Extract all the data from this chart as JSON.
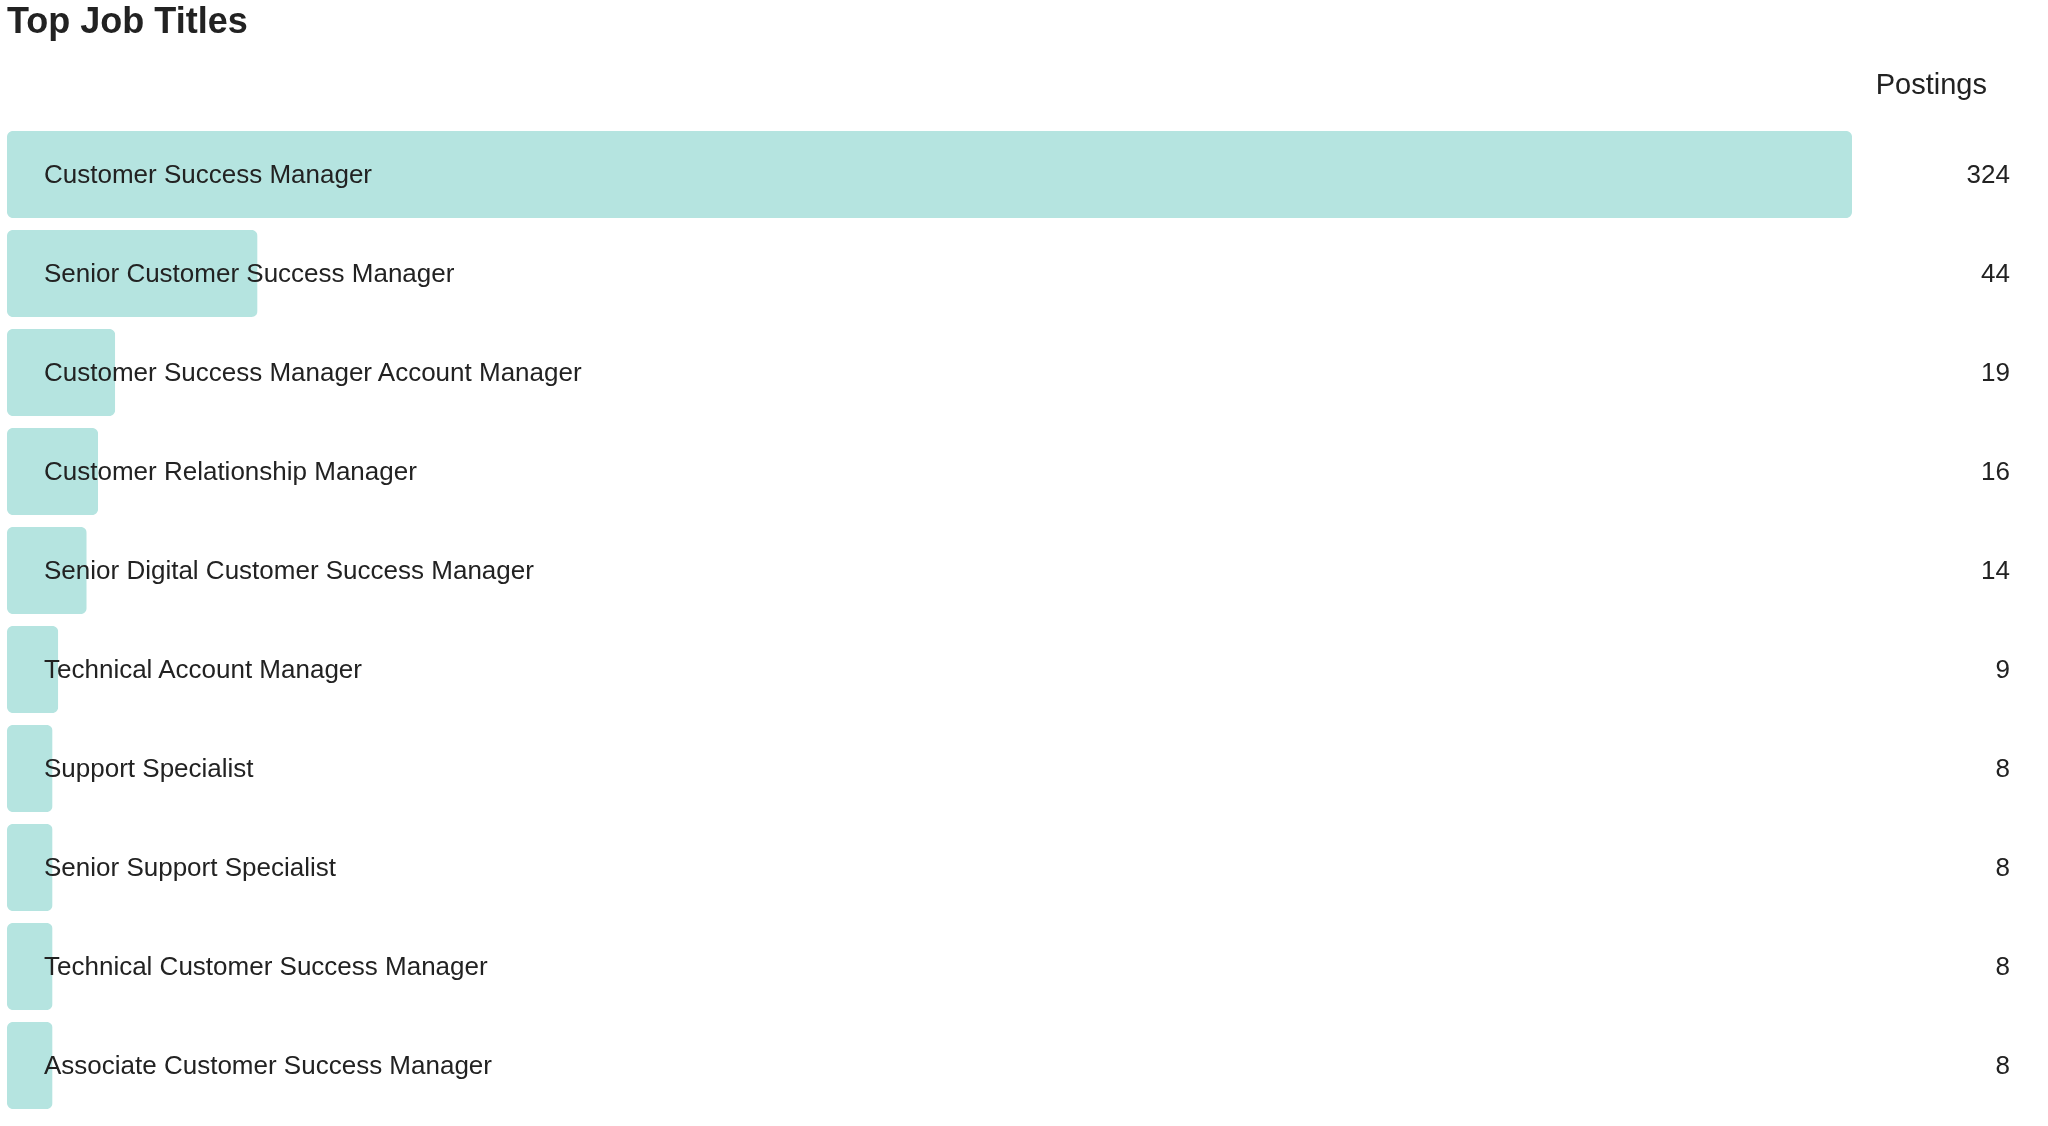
{
  "chart_data": {
    "type": "bar",
    "orientation": "horizontal",
    "title": "Top Job Titles",
    "xlabel": "Postings",
    "categories": [
      "Customer Success Manager",
      "Senior Customer Success Manager",
      "Customer Success Manager Account Manager",
      "Customer Relationship Manager",
      "Senior Digital Customer Success Manager",
      "Technical Account Manager",
      "Support Specialist",
      "Senior Support Specialist",
      "Technical Customer Success Manager",
      "Associate Customer Success Manager"
    ],
    "values": [
      324,
      44,
      19,
      16,
      14,
      9,
      8,
      8,
      8,
      8
    ],
    "color": "#b5e4e0",
    "data_labels": true
  }
}
